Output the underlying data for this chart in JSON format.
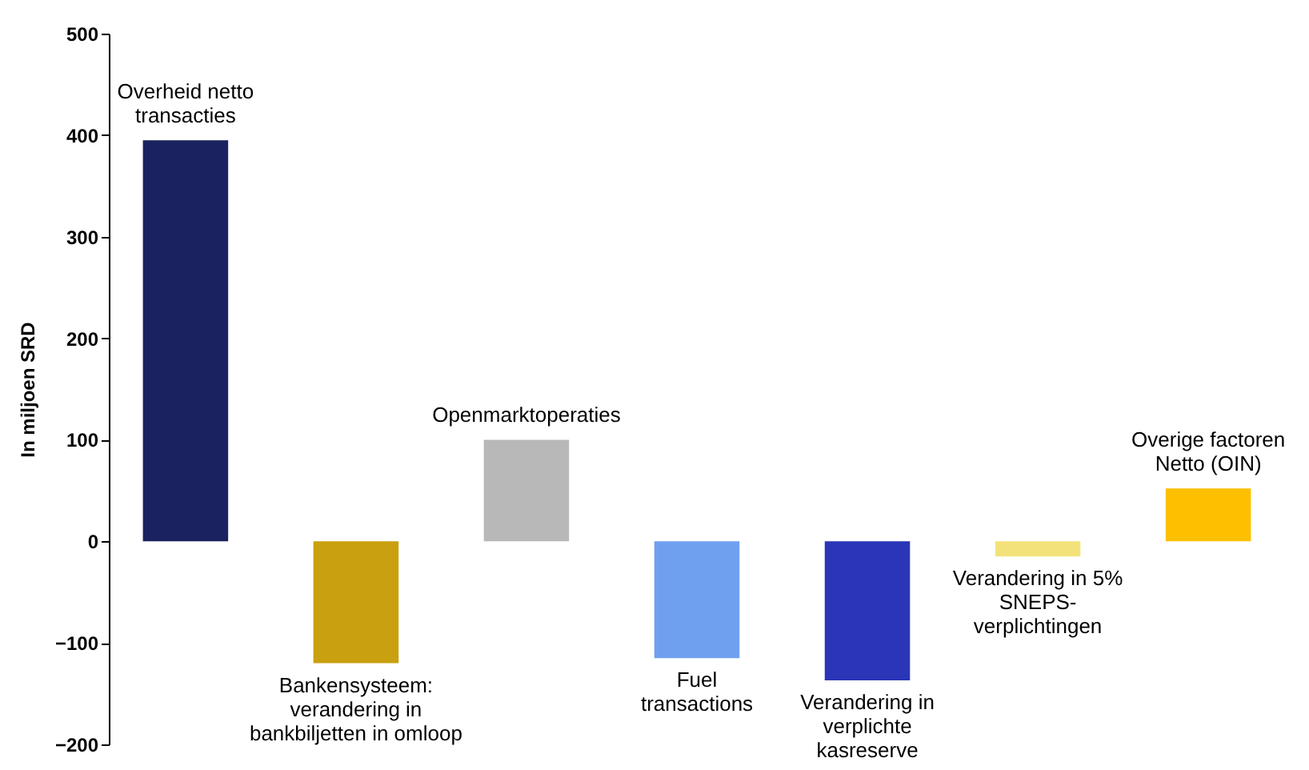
{
  "chart_data": {
    "type": "bar",
    "ylabel": "In miljoen SRD",
    "categories": [
      "Overheid netto\ntransacties",
      "Bankensysteem:\nverandering in\nbankbiljetten in omloop",
      "Openmarktoperaties",
      "Fuel\ntransactions",
      "Verandering in\nverplichte\nkasreserve",
      "Verandering in 5%\nSNEPS-\nverplichtingen",
      "Overige factoren\nNetto (OIN)"
    ],
    "values": [
      395,
      -120,
      100,
      -115,
      -137,
      -15,
      52
    ],
    "colors": [
      "#1a2260",
      "#c9a00f",
      "#b8b8b8",
      "#6fa0f0",
      "#2a35b8",
      "#f3e27a",
      "#fdbf00"
    ],
    "ylim": [
      -200,
      500
    ],
    "yticks": [
      -200,
      -100,
      0,
      100,
      200,
      300,
      400,
      500
    ],
    "grid": false
  }
}
